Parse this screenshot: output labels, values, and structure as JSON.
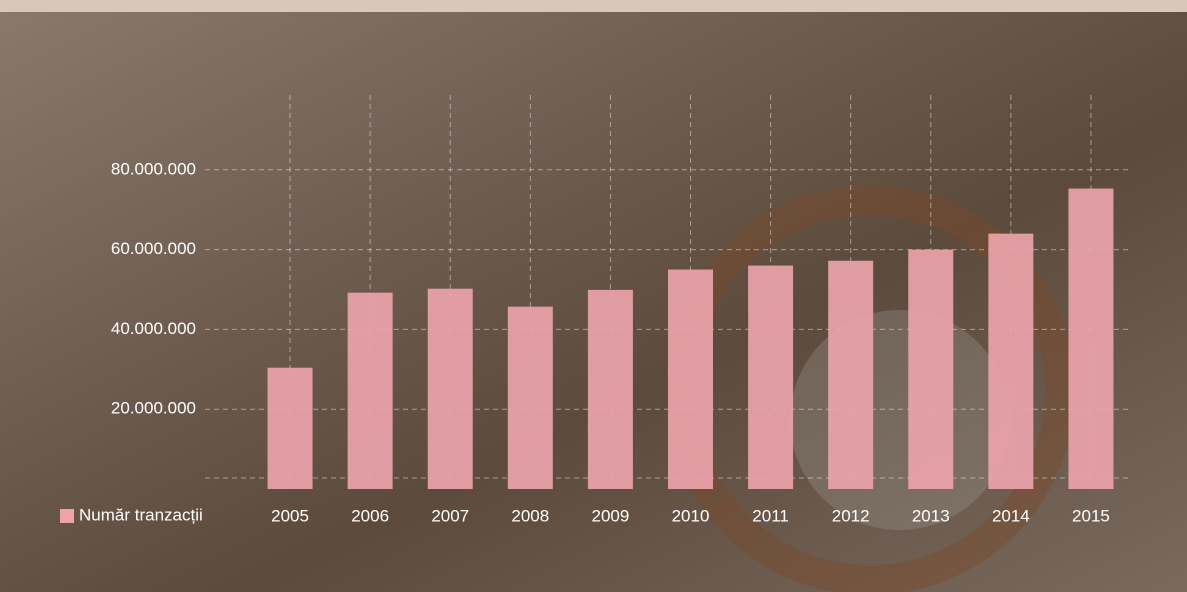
{
  "chart_data": {
    "type": "bar",
    "categories": [
      "2005",
      "2006",
      "2007",
      "2008",
      "2009",
      "2010",
      "2011",
      "2012",
      "2013",
      "2014",
      "2015"
    ],
    "series": [
      {
        "name": "Număr tranzacții",
        "color": "#eca3ab",
        "values": [
          30400000,
          49200000,
          50200000,
          45700000,
          49900000,
          55000000,
          56000000,
          57200000,
          60000000,
          64000000,
          75300000
        ]
      }
    ],
    "ylim": [
      0,
      100000000
    ],
    "yticks": [
      {
        "value": 20000000,
        "label": "20.000.000"
      },
      {
        "value": 40000000,
        "label": "40.000.000"
      },
      {
        "value": 60000000,
        "label": "60.000.000"
      },
      {
        "value": 80000000,
        "label": "80.000.000"
      }
    ],
    "grid": true,
    "legend": "left"
  }
}
